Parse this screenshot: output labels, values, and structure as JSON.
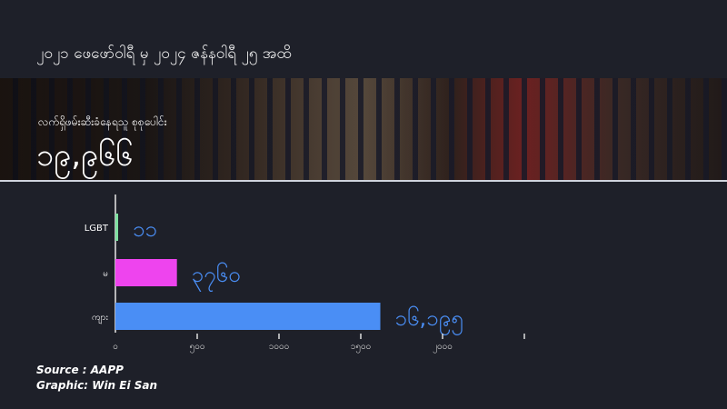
{
  "title": "၂၀၂၁ ဖေဖော်ဝါရီ မှ ၂၀၂၄ ဇန်နဝါရီ ၂၅ အထိ",
  "header": {
    "subtitle": "လက်ရှိဖမ်းဆီးခံနေရသူ စုစုပေါင်း",
    "total": "၁၉,၉၆၆"
  },
  "chart_data": {
    "type": "bar",
    "orientation": "horizontal",
    "categories": [
      "LGBT",
      "မ",
      "ကျား"
    ],
    "values": [
      11,
      3760,
      16195
    ],
    "value_labels": [
      "၁၁",
      "၃၇၆၀",
      "၁၆,၁၉၅"
    ],
    "colors": [
      "#7ee0a0",
      "#ee44ee",
      "#4a8ef5"
    ],
    "value_label_color": "#4a8ef5",
    "x_tick_labels": [
      "၀",
      "၅၀၀",
      "၁၀၀၀",
      "၁၅၀၀",
      "၂၀၀၀",
      ""
    ],
    "grid": false
  },
  "footer": {
    "source": "Source  : AAPP",
    "graphic": "Graphic: Win Ei San"
  }
}
